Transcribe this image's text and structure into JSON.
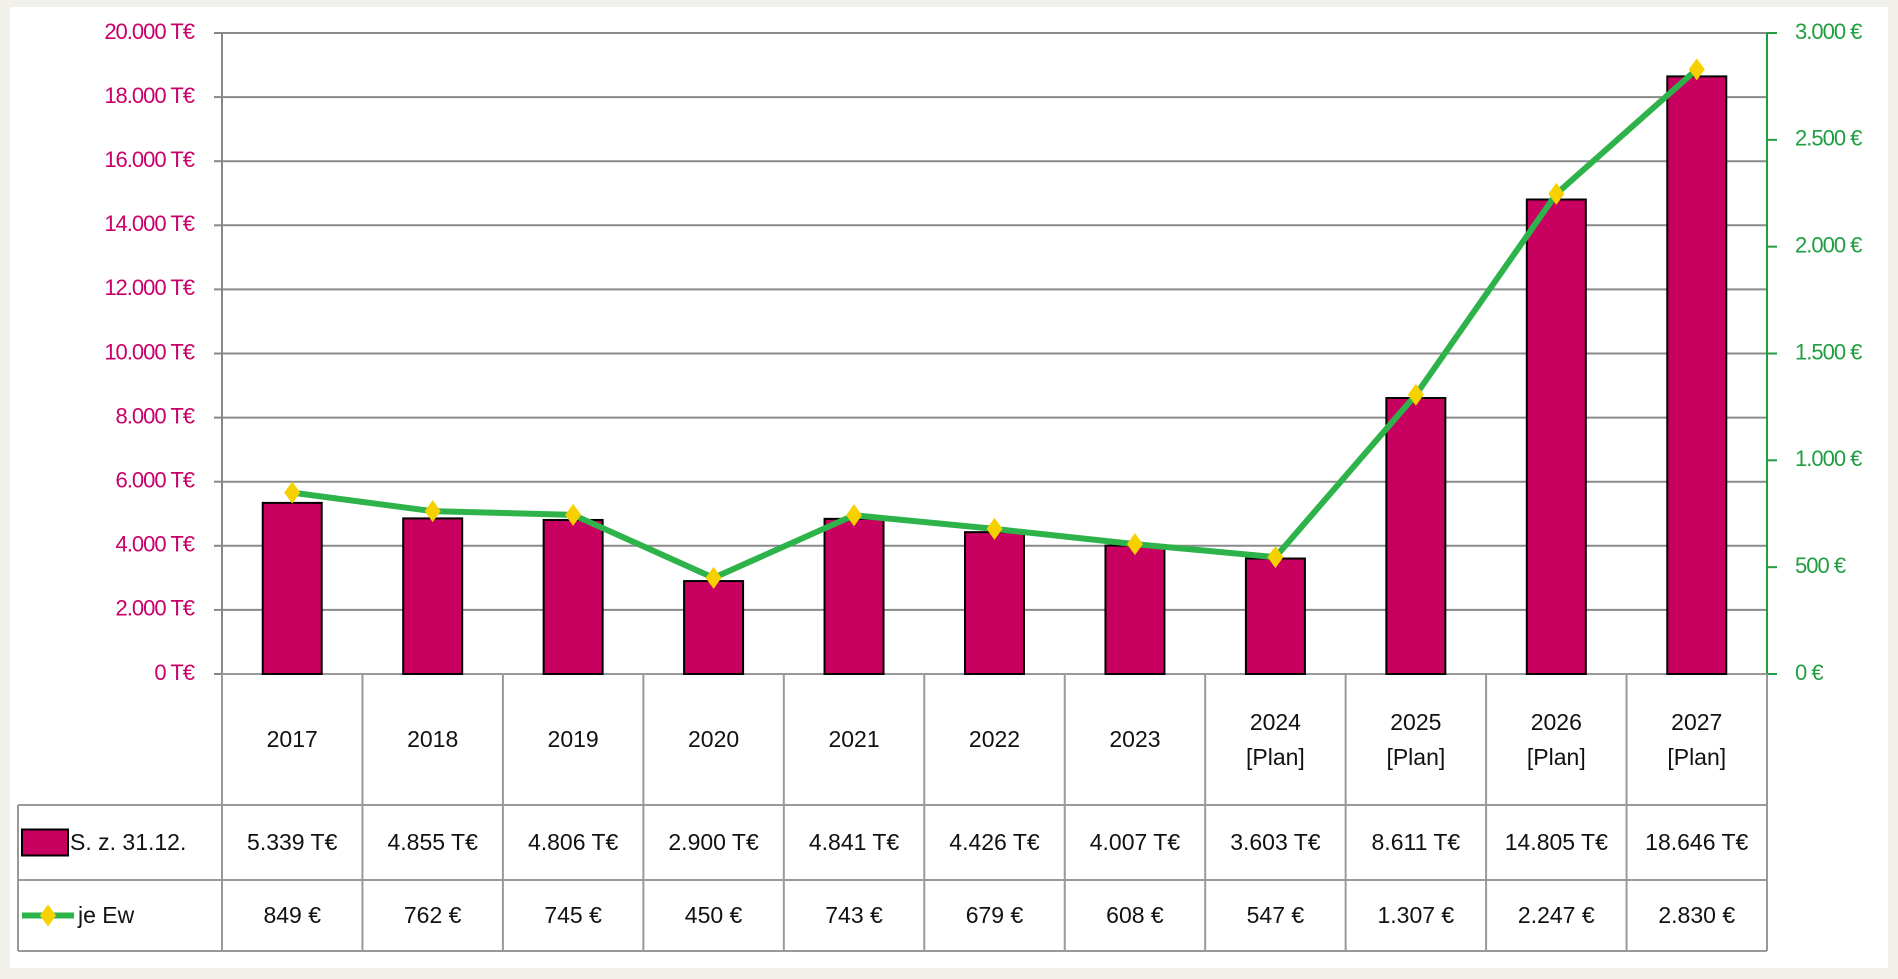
{
  "chart_data": {
    "type": "bar",
    "categories": [
      "2017",
      "2018",
      "2019",
      "2020",
      "2021",
      "2022",
      "2023",
      "2024\n[Plan]",
      "2025\n[Plan]",
      "2026\n[Plan]",
      "2027\n[Plan]"
    ],
    "series": [
      {
        "name": "S. z. 31.12.",
        "color": "#c8005f",
        "values": [
          5339,
          4855,
          4806,
          2900,
          4841,
          4426,
          4007,
          3603,
          8611,
          14805,
          18646
        ],
        "value_labels": [
          "5.339 T€",
          "4.855 T€",
          "4.806 T€",
          "2.900 T€",
          "4.841 T€",
          "4.426 T€",
          "4.007 T€",
          "3.603 T€",
          "8.611 T€",
          "14.805 T€",
          "18.646 T€"
        ]
      },
      {
        "name": "je Ew",
        "color": "#2db34a",
        "marker_color": "#f7d000",
        "type": "line",
        "axis": "y2",
        "values": [
          849,
          762,
          745,
          450,
          743,
          679,
          608,
          547,
          1307,
          2247,
          2830
        ],
        "value_labels": [
          "849 €",
          "762 €",
          "745 €",
          "450 €",
          "743 €",
          "679 €",
          "608 €",
          "547 €",
          "1.307 €",
          "2.247 €",
          "2.830 €"
        ]
      }
    ],
    "ylim": [
      0,
      20000
    ],
    "yticks": [
      {
        "value": 0,
        "label": "0 T€"
      },
      {
        "value": 2000,
        "label": "2.000 T€"
      },
      {
        "value": 4000,
        "label": "4.000 T€"
      },
      {
        "value": 6000,
        "label": "6.000 T€"
      },
      {
        "value": 8000,
        "label": "8.000 T€"
      },
      {
        "value": 10000,
        "label": "10.000 T€"
      },
      {
        "value": 12000,
        "label": "12.000 T€"
      },
      {
        "value": 14000,
        "label": "14.000 T€"
      },
      {
        "value": 16000,
        "label": "16.000 T€"
      },
      {
        "value": 18000,
        "label": "18.000 T€"
      },
      {
        "value": 20000,
        "label": "20.000 T€"
      }
    ],
    "y2lim": [
      0,
      3000
    ],
    "y2ticks": [
      {
        "value": 0,
        "label": "0 €"
      },
      {
        "value": 500,
        "label": "500 €"
      },
      {
        "value": 1000,
        "label": "1.000 €"
      },
      {
        "value": 1500,
        "label": "1.500 €"
      },
      {
        "value": 2000,
        "label": "2.000 €"
      },
      {
        "value": 2500,
        "label": "2.500 €"
      },
      {
        "value": 3000,
        "label": "3.000 €"
      }
    ],
    "y_color": "#c8006a",
    "y2_color": "#1f9e40",
    "grid": true
  }
}
